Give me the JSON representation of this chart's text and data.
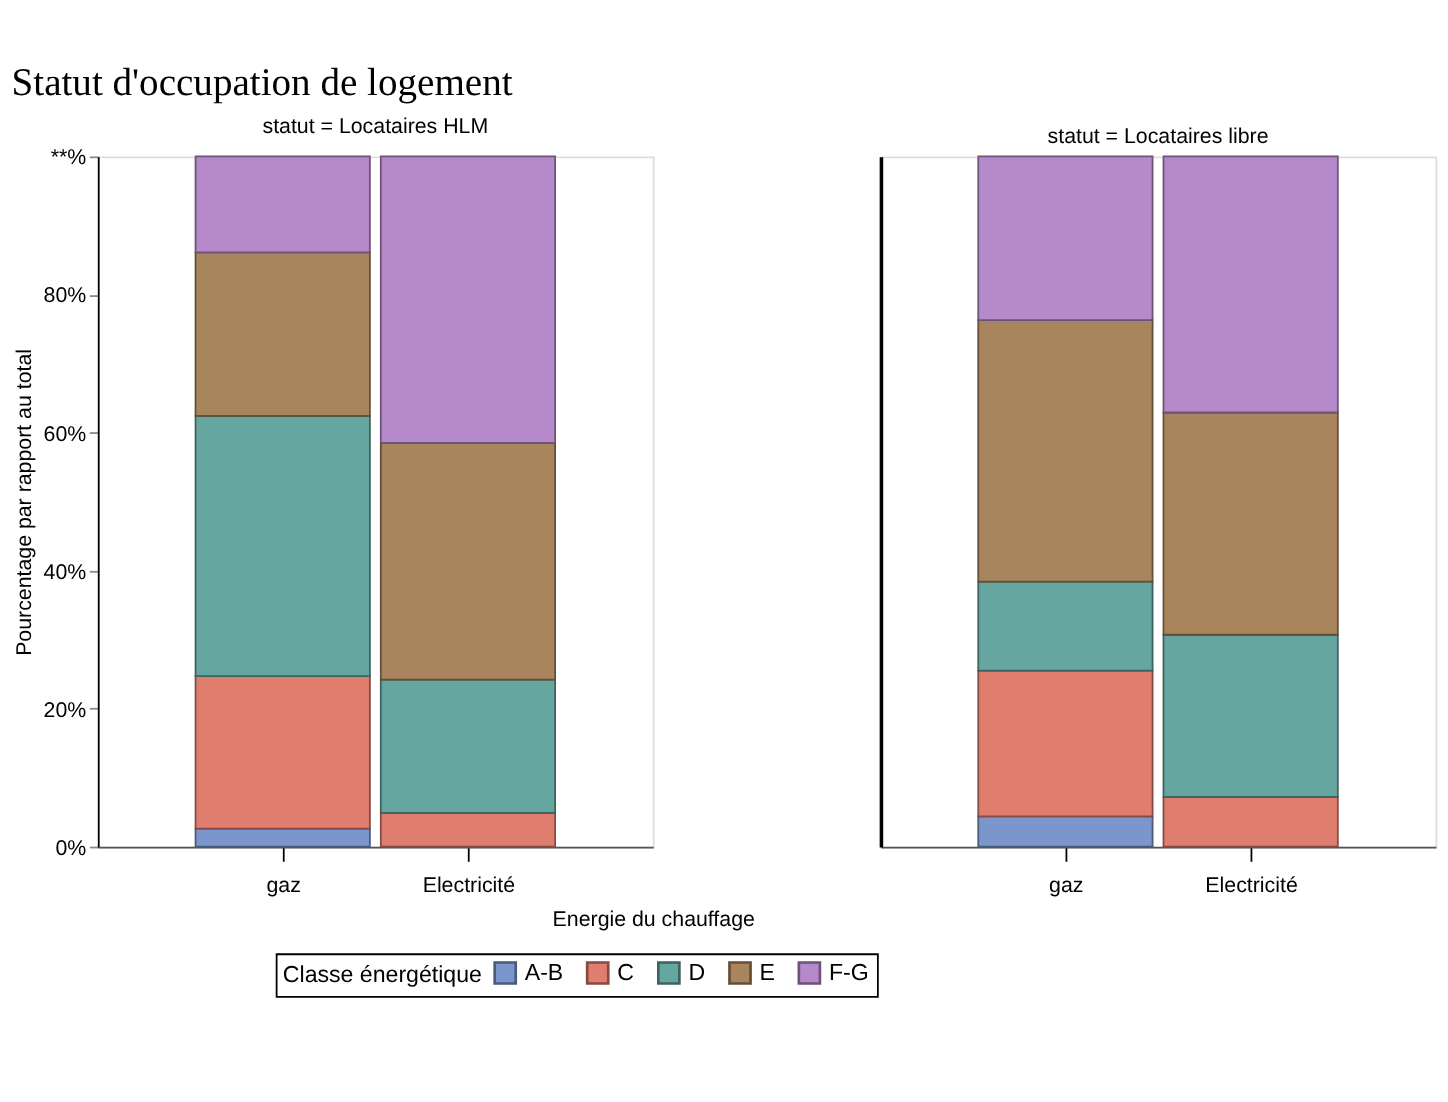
{
  "chart_data": [
    {
      "type": "bar",
      "stacked": true,
      "title": "statut = Locataires HLM",
      "annotations": [
        "Statut d'occupation de logement"
      ],
      "ylabel": "Pourcentage par rapport au total",
      "xlabel": "Energie du chauffage",
      "legend_title": "Classe énergétique",
      "legend": "bottom",
      "categories": [
        "gaz",
        "Electricité"
      ],
      "ylim": [
        0,
        100
      ],
      "yticks": [
        {
          "value": 0,
          "label": "0%"
        },
        {
          "value": 20,
          "label": "20%"
        },
        {
          "value": 40,
          "label": "40%"
        },
        {
          "value": 60,
          "label": "60%"
        },
        {
          "value": 80,
          "label": "80%"
        },
        {
          "value": 100,
          "label": "**%"
        }
      ],
      "series": [
        {
          "name": "A-B",
          "color": "#7b96cc",
          "values": [
            2.6,
            0
          ]
        },
        {
          "name": "C",
          "color": "#df7d6e",
          "values": [
            22.1,
            4.9
          ]
        },
        {
          "name": "D",
          "color": "#66a6a0",
          "values": [
            37.7,
            19.3
          ]
        },
        {
          "name": "E",
          "color": "#a8855c",
          "values": [
            23.7,
            34.3
          ]
        },
        {
          "name": "F-G",
          "color": "#b689cb",
          "values": [
            13.9,
            41.5
          ]
        }
      ]
    },
    {
      "type": "bar",
      "stacked": true,
      "title": "statut = Locataires libre",
      "tick_labels": "x",
      "categories": [
        "gaz",
        "Electricité"
      ],
      "ylim": [
        0,
        100
      ],
      "series": [
        {
          "color": "#7b96cc",
          "values": [
            4.4,
            0
          ]
        },
        {
          "color": "#df7d6e",
          "values": [
            21.1,
            7.2
          ]
        },
        {
          "color": "#66a6a0",
          "values": [
            12.9,
            23.5
          ]
        },
        {
          "color": "#a8855c",
          "values": [
            37.9,
            32.2
          ]
        },
        {
          "color": "#b689cb",
          "values": [
            23.7,
            37.1
          ]
        }
      ]
    }
  ]
}
